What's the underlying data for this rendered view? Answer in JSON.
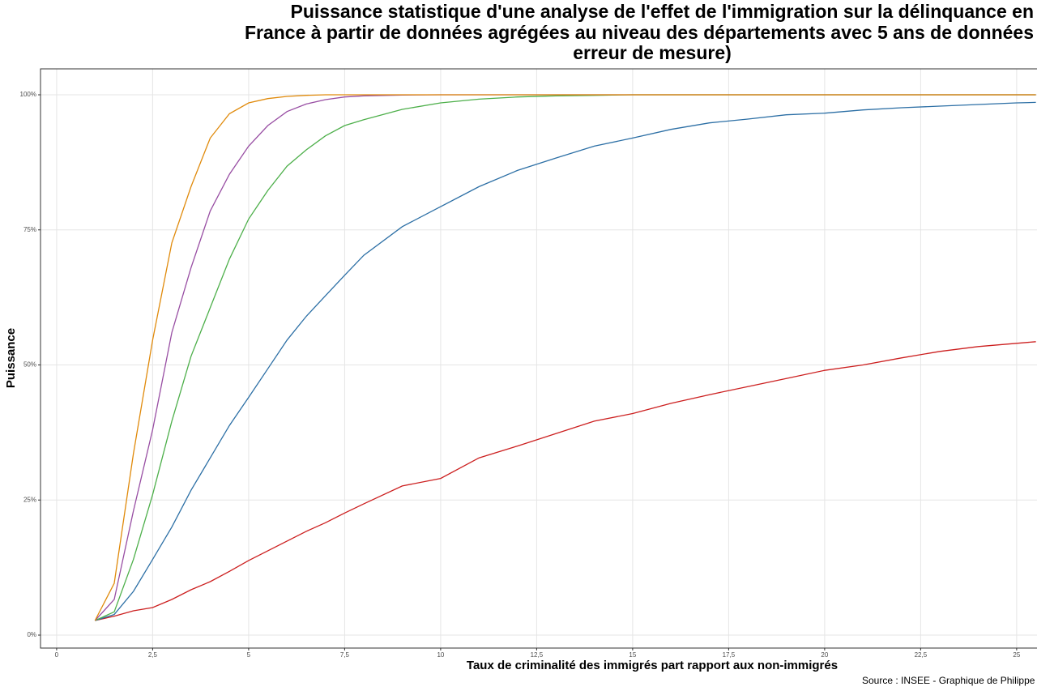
{
  "chart_data": {
    "type": "line",
    "title": [
      "Puissance statistique d'une analyse de l'effet de l'immigration sur la délinquance en",
      "France à partir de données agrégées au niveau des départements avec 5 ans de données",
      "erreur de mesure)"
    ],
    "x_label": "Taux de criminalité des immigrés part rapport aux non-immigrés",
    "y_label": "Puissance",
    "caption": "Source : INSEE - Graphique de Philippe",
    "x": [
      1,
      1.5,
      2,
      2.5,
      3,
      3.5,
      4,
      4.5,
      5,
      5.5,
      6,
      6.5,
      7,
      7.5,
      8,
      9,
      10,
      11,
      12,
      13,
      14,
      15,
      16,
      17,
      18,
      19,
      20,
      21,
      22,
      23,
      24,
      25,
      25.5
    ],
    "series": [
      {
        "color": "#cc1f1f",
        "values": [
          2.7,
          3.5,
          4.5,
          5.1,
          6.6,
          8.4,
          9.9,
          11.8,
          13.8,
          15.6,
          17.4,
          19.2,
          20.8,
          22.6,
          24.3,
          27.6,
          29,
          32.8,
          35,
          37.3,
          39.6,
          41,
          42.9,
          44.5,
          46,
          47.5,
          49,
          50,
          51.3,
          52.5,
          53.4,
          54,
          54.3
        ]
      },
      {
        "color": "#2c6fa5",
        "values": [
          2.7,
          3.8,
          8.1,
          14,
          20,
          26.8,
          32.8,
          38.8,
          44,
          49.3,
          54.6,
          59,
          62.8,
          66.6,
          70.3,
          75.6,
          79.3,
          83,
          86,
          88.3,
          90.5,
          92,
          93.6,
          94.8,
          95.5,
          96.3,
          96.6,
          97.2,
          97.6,
          97.9,
          98.2,
          98.5,
          98.6
        ]
      },
      {
        "color": "#4daf4a",
        "values": [
          2.7,
          4.3,
          14,
          26,
          39.6,
          51.6,
          60.6,
          69.6,
          77,
          82.3,
          86.8,
          89.8,
          92.4,
          94.3,
          95.4,
          97.3,
          98.5,
          99.2,
          99.6,
          99.8,
          99.9,
          100,
          100,
          100,
          100,
          100,
          100,
          100,
          100,
          100,
          100,
          100,
          100
        ]
      },
      {
        "color": "#984ea3",
        "values": [
          2.7,
          6.6,
          23,
          38,
          56,
          68,
          78.5,
          85.3,
          90.5,
          94.3,
          96.9,
          98.3,
          99.1,
          99.6,
          99.8,
          99.95,
          100,
          100,
          100,
          100,
          100,
          100,
          100,
          100,
          100,
          100,
          100,
          100,
          100,
          100,
          100,
          100,
          100
        ]
      },
      {
        "color": "#e08a0b",
        "values": [
          2.7,
          9.6,
          33.6,
          54.6,
          72.6,
          83,
          92,
          96.5,
          98.5,
          99.3,
          99.7,
          99.9,
          100,
          100,
          100,
          100,
          100,
          100,
          100,
          100,
          100,
          100,
          100,
          100,
          100,
          100,
          100,
          100,
          100,
          100,
          100,
          100,
          100
        ]
      }
    ],
    "xlim": [
      -0.42,
      25.53
    ],
    "ylim": [
      -2.4,
      104.8
    ],
    "xticks": [
      0,
      {
        "value": 2.5,
        "label": "2,5"
      },
      5,
      {
        "value": 7.5,
        "label": "7,5"
      },
      10,
      {
        "value": 12.5,
        "label": "12,5"
      },
      15,
      {
        "value": 17.5,
        "label": "17,5"
      },
      20,
      {
        "value": 22.5,
        "label": "22,5"
      },
      25
    ],
    "yticks": [
      {
        "value": 0,
        "label": "0%"
      },
      {
        "value": 25,
        "label": "25%"
      },
      {
        "value": 50,
        "label": "50%"
      },
      {
        "value": 75,
        "label": "75%"
      },
      {
        "value": 100,
        "label": "100%"
      }
    ],
    "grid": true
  }
}
